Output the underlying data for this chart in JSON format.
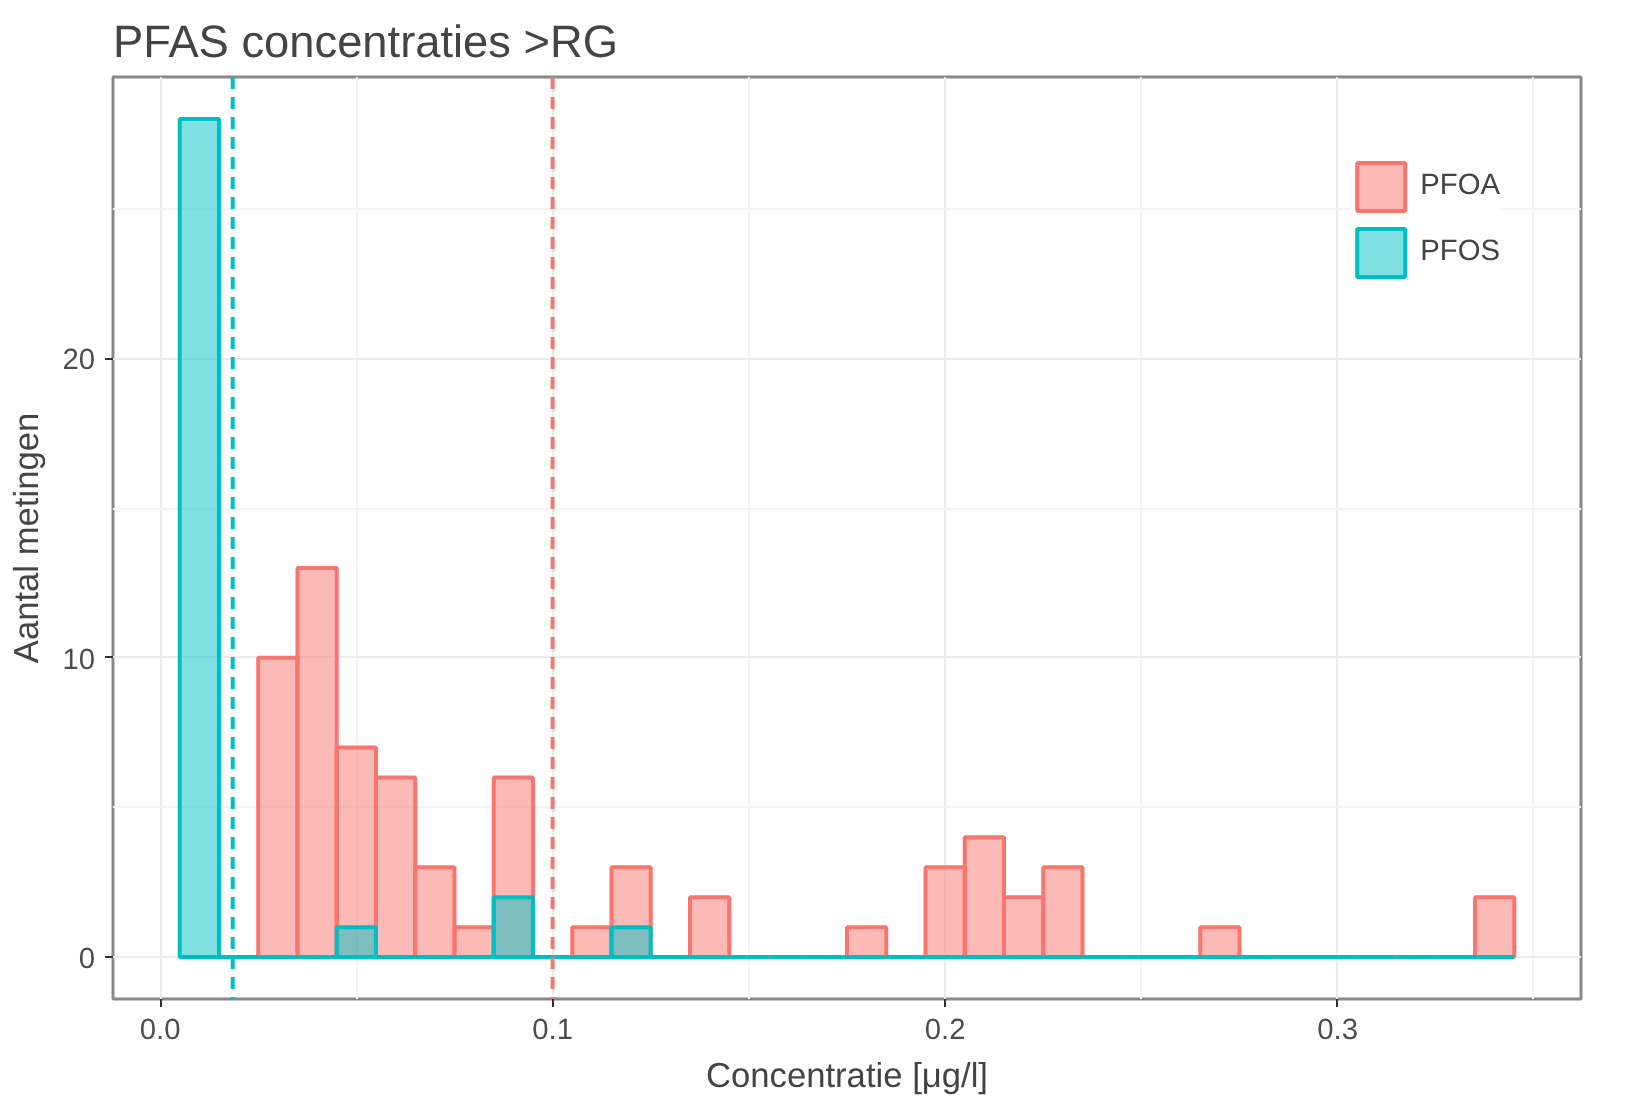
{
  "chart_data": {
    "type": "histogram",
    "title": "PFAS concentraties >RG",
    "xlabel": "Concentratie [μg/l]",
    "ylabel": "Aantal metingen",
    "bins": [
      0.005,
      0.015,
      0.025,
      0.035,
      0.045,
      0.055,
      0.065,
      0.075,
      0.085,
      0.095,
      0.105,
      0.115,
      0.125,
      0.135,
      0.145,
      0.155,
      0.165,
      0.175,
      0.185,
      0.195,
      0.205,
      0.215,
      0.225,
      0.235,
      0.245,
      0.255,
      0.265,
      0.275,
      0.285,
      0.295,
      0.305,
      0.315,
      0.325,
      0.335,
      0.345
    ],
    "series": [
      {
        "name": "PFOA",
        "color": "#f8766d",
        "values": [
          0,
          0,
          10,
          13,
          7,
          6,
          3,
          1,
          6,
          0,
          1,
          3,
          0,
          2,
          0,
          0,
          0,
          1,
          0,
          3,
          4,
          2,
          3,
          0,
          0,
          0,
          1,
          0,
          0,
          0,
          0,
          0,
          0,
          2
        ]
      },
      {
        "name": "PFOS",
        "color": "#00bfc4",
        "values": [
          28,
          0,
          0,
          0,
          1,
          0,
          0,
          0,
          2,
          0,
          0,
          1,
          0,
          0,
          0,
          0,
          0,
          0,
          0,
          0,
          0,
          0,
          0,
          0,
          0,
          0,
          0,
          0,
          0,
          0,
          0,
          0,
          0,
          0
        ]
      }
    ],
    "ref_lines": [
      {
        "axis": "x",
        "value": 0.1,
        "color": "#f8766d",
        "line_style": "dashed"
      },
      {
        "axis": "x",
        "value": 0.0185,
        "color": "#00bfc4",
        "line_style": "dashed"
      }
    ],
    "xlim": [
      -0.012,
      0.362
    ],
    "xticks": [
      {
        "value": 0,
        "label": "0.0"
      },
      0.1,
      0.2,
      0.3
    ],
    "ylim": [
      -1.4,
      29.4
    ],
    "yticks": [
      0,
      10,
      20
    ],
    "grid": true,
    "legend": "top right"
  }
}
